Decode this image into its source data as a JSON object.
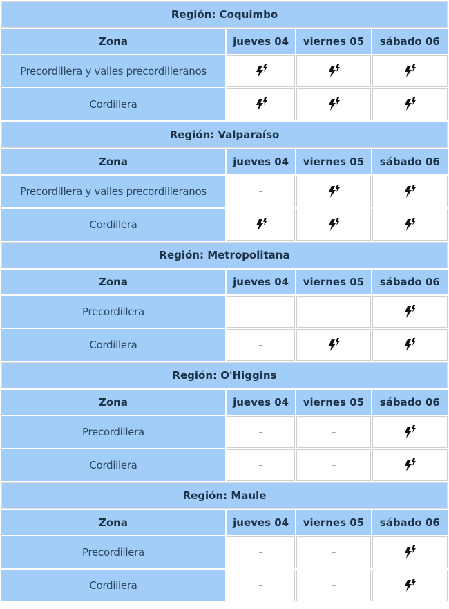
{
  "labels": {
    "zone_header": "Zona",
    "region_prefix": "Región: ",
    "none": "–"
  },
  "days": [
    "jueves 04",
    "viernes 05",
    "sábado 06"
  ],
  "icon": "thunderstorm-lightning-icon",
  "colors": {
    "header_bg": "#a3cdf9",
    "text": "#1e3246"
  },
  "regions": [
    {
      "title": "Región: Coquimbo",
      "rows": [
        {
          "zone": "Precordillera y valles precordilleranos",
          "values": [
            "storm",
            "storm",
            "storm"
          ]
        },
        {
          "zone": "Cordillera",
          "values": [
            "storm",
            "storm",
            "storm"
          ]
        }
      ]
    },
    {
      "title": "Región: Valparaíso",
      "rows": [
        {
          "zone": "Precordillera y valles precordilleranos",
          "values": [
            "none",
            "storm",
            "storm"
          ]
        },
        {
          "zone": "Cordillera",
          "values": [
            "storm",
            "storm",
            "storm"
          ]
        }
      ]
    },
    {
      "title": "Región: Metropolitana",
      "rows": [
        {
          "zone": "Precordillera",
          "values": [
            "none",
            "none",
            "storm"
          ]
        },
        {
          "zone": "Cordillera",
          "values": [
            "none",
            "storm",
            "storm"
          ]
        }
      ]
    },
    {
      "title": "Región: O'Higgins",
      "rows": [
        {
          "zone": "Precordillera",
          "values": [
            "none",
            "none",
            "storm"
          ]
        },
        {
          "zone": "Cordillera",
          "values": [
            "none",
            "none",
            "storm"
          ]
        }
      ]
    },
    {
      "title": "Región: Maule",
      "rows": [
        {
          "zone": "Precordillera",
          "values": [
            "none",
            "none",
            "storm"
          ]
        },
        {
          "zone": "Cordillera",
          "values": [
            "none",
            "none",
            "storm"
          ]
        }
      ]
    }
  ]
}
